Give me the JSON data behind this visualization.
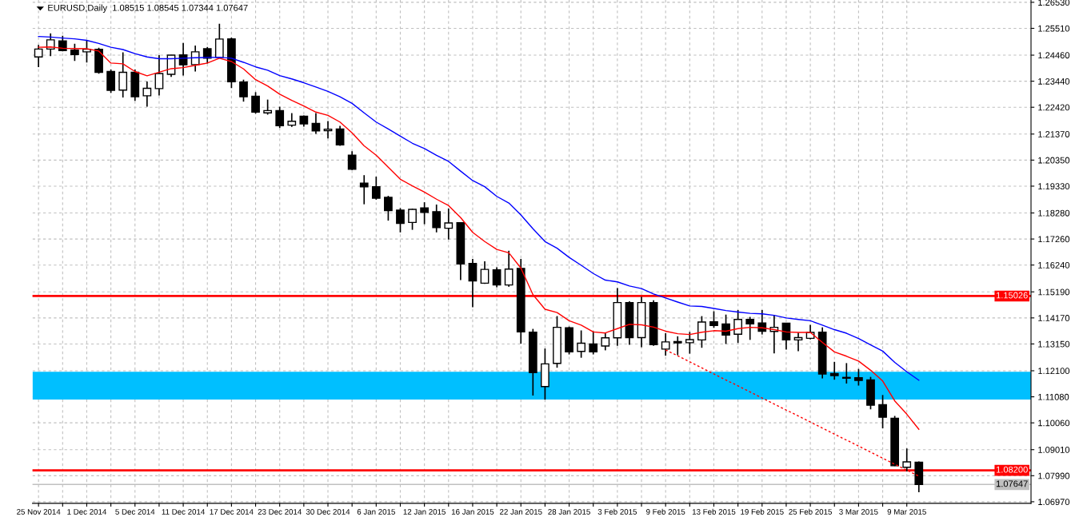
{
  "chart_data": {
    "type": "candlestick",
    "title": "EURUSD,Daily  1.08515 1.08545 1.07344 1.07647",
    "categories": [
      "25 Nov 2014",
      null,
      null,
      null,
      "1 Dec 2014",
      null,
      null,
      null,
      "5 Dec 2014",
      null,
      null,
      null,
      "11 Dec 2014",
      null,
      null,
      null,
      "17 Dec 2014",
      null,
      null,
      null,
      "23 Dec 2014",
      null,
      null,
      null,
      "30 Dec 2014",
      null,
      null,
      null,
      "6 Jan 2015",
      null,
      null,
      null,
      "12 Jan 2015",
      null,
      null,
      null,
      "16 Jan 2015",
      null,
      null,
      null,
      "22 Jan 2015",
      null,
      null,
      null,
      "28 Jan 2015",
      null,
      null,
      null,
      "3 Feb 2015",
      null,
      null,
      null,
      "9 Feb 2015",
      null,
      null,
      null,
      "13 Feb 2015",
      null,
      null,
      null,
      "19 Feb 2015",
      null,
      null,
      null,
      "25 Feb 2015",
      null,
      null,
      null,
      "3 Mar 2015",
      null,
      null,
      null,
      "9 Mar 2015",
      null
    ],
    "ohlc": [
      [
        1.2439,
        1.2486,
        1.2399,
        1.247
      ],
      [
        1.247,
        1.2531,
        1.2442,
        1.2506
      ],
      [
        1.2502,
        1.2522,
        1.2461,
        1.2464
      ],
      [
        1.2466,
        1.2491,
        1.2423,
        1.2448
      ],
      [
        1.2459,
        1.2504,
        1.2417,
        1.2469
      ],
      [
        1.2469,
        1.2475,
        1.2373,
        1.2379
      ],
      [
        1.2382,
        1.239,
        1.2298,
        1.2308
      ],
      [
        1.2309,
        1.2457,
        1.228,
        1.2379
      ],
      [
        1.2379,
        1.239,
        1.2267,
        1.2283
      ],
      [
        1.2287,
        1.2343,
        1.2244,
        1.2316
      ],
      [
        1.2315,
        1.2446,
        1.2288,
        1.2374
      ],
      [
        1.2371,
        1.2447,
        1.2361,
        1.2446
      ],
      [
        1.2447,
        1.2494,
        1.2366,
        1.2408
      ],
      [
        1.2409,
        1.2484,
        1.2382,
        1.2459
      ],
      [
        1.2471,
        1.2478,
        1.2413,
        1.2434
      ],
      [
        1.2437,
        1.2569,
        1.2435,
        1.2509
      ],
      [
        1.251,
        1.2515,
        1.2317,
        1.2342
      ],
      [
        1.2341,
        1.235,
        1.2264,
        1.2283
      ],
      [
        1.2285,
        1.2301,
        1.2217,
        1.2223
      ],
      [
        1.222,
        1.2272,
        1.2213,
        1.2229
      ],
      [
        1.2229,
        1.2244,
        1.2161,
        1.217
      ],
      [
        1.2172,
        1.2219,
        1.2165,
        1.2187
      ],
      [
        1.2207,
        1.221,
        1.2166,
        1.2177
      ],
      [
        1.2179,
        1.2219,
        1.2138,
        1.2149
      ],
      [
        1.215,
        1.2188,
        1.212,
        1.2156
      ],
      [
        1.2157,
        1.2169,
        1.2091,
        1.2095
      ],
      [
        1.2054,
        1.207,
        1.1996,
        1.1999
      ],
      [
        1.1945,
        1.1976,
        1.1862,
        1.193
      ],
      [
        1.1931,
        1.197,
        1.188,
        1.1886
      ],
      [
        1.1889,
        1.1895,
        1.1798,
        1.1837
      ],
      [
        1.1839,
        1.1847,
        1.1752,
        1.1787
      ],
      [
        1.1791,
        1.1845,
        1.1762,
        1.1842
      ],
      [
        1.1848,
        1.187,
        1.1784,
        1.183
      ],
      [
        1.1833,
        1.1861,
        1.1752,
        1.1771
      ],
      [
        1.1768,
        1.1845,
        1.1724,
        1.1789
      ],
      [
        1.179,
        1.1792,
        1.1565,
        1.1628
      ],
      [
        1.163,
        1.1648,
        1.1459,
        1.1562
      ],
      [
        1.1553,
        1.1639,
        1.155,
        1.1607
      ],
      [
        1.1605,
        1.1615,
        1.1537,
        1.1546
      ],
      [
        1.1546,
        1.168,
        1.1539,
        1.1608
      ],
      [
        1.1611,
        1.1648,
        1.1316,
        1.1362
      ],
      [
        1.1361,
        1.1374,
        1.1113,
        1.1203
      ],
      [
        1.1148,
        1.1297,
        1.1097,
        1.1237
      ],
      [
        1.1239,
        1.1424,
        1.1222,
        1.138
      ],
      [
        1.1378,
        1.1383,
        1.1274,
        1.1284
      ],
      [
        1.1286,
        1.1368,
        1.1261,
        1.1318
      ],
      [
        1.1315,
        1.1365,
        1.1274,
        1.1284
      ],
      [
        1.1307,
        1.136,
        1.129,
        1.1339
      ],
      [
        1.1339,
        1.1534,
        1.1308,
        1.1477
      ],
      [
        1.1477,
        1.1482,
        1.1312,
        1.134
      ],
      [
        1.134,
        1.15,
        1.1302,
        1.1477
      ],
      [
        1.1477,
        1.1486,
        1.1308,
        1.1312
      ],
      [
        1.1295,
        1.1357,
        1.1269,
        1.1323
      ],
      [
        1.1324,
        1.1345,
        1.1271,
        1.1319
      ],
      [
        1.132,
        1.1362,
        1.1277,
        1.1332
      ],
      [
        1.1331,
        1.1424,
        1.13,
        1.1401
      ],
      [
        1.1402,
        1.1443,
        1.1378,
        1.1387
      ],
      [
        1.1393,
        1.143,
        1.1315,
        1.135
      ],
      [
        1.1353,
        1.1448,
        1.1319,
        1.1411
      ],
      [
        1.1411,
        1.1421,
        1.1331,
        1.1394
      ],
      [
        1.1397,
        1.1448,
        1.1352,
        1.1365
      ],
      [
        1.1364,
        1.1429,
        1.1278,
        1.138
      ],
      [
        1.1396,
        1.1396,
        1.1293,
        1.1331
      ],
      [
        1.1331,
        1.1359,
        1.1287,
        1.134
      ],
      [
        1.1337,
        1.139,
        1.1333,
        1.136
      ],
      [
        1.1361,
        1.138,
        1.118,
        1.1197
      ],
      [
        1.1199,
        1.1245,
        1.1175,
        1.1191
      ],
      [
        1.1184,
        1.124,
        1.116,
        1.1181
      ],
      [
        1.1183,
        1.1217,
        1.1152,
        1.1172
      ],
      [
        1.1174,
        1.1186,
        1.1059,
        1.1075
      ],
      [
        1.1077,
        1.1115,
        1.0985,
        1.1028
      ],
      [
        1.1024,
        1.1033,
        1.0837,
        1.0838
      ],
      [
        1.0832,
        1.0906,
        1.0816,
        1.0853
      ],
      [
        1.08515,
        1.08545,
        1.07344,
        1.07647
      ]
    ],
    "series": [
      {
        "type": "line",
        "color": "#ff0000",
        "values": [
          1.2477,
          1.2478,
          1.2473,
          1.2472,
          1.2471,
          1.2462,
          1.2415,
          1.2412,
          1.2382,
          1.2365,
          1.2379,
          1.2393,
          1.2397,
          1.2406,
          1.2415,
          1.2434,
          1.2421,
          1.2392,
          1.235,
          1.2325,
          1.2293,
          1.2269,
          1.2247,
          1.2223,
          1.221,
          1.2184,
          1.2142,
          1.2091,
          1.2054,
          1.2007,
          1.196,
          1.1934,
          1.191,
          1.1882,
          1.1857,
          1.181,
          1.1752,
          1.1716,
          1.1685,
          1.1672,
          1.1612,
          1.1508,
          1.1451,
          1.1438,
          1.1406,
          1.1389,
          1.1362,
          1.1358,
          1.1375,
          1.1392,
          1.139,
          1.1381,
          1.1365,
          1.1355,
          1.1352,
          1.1361,
          1.1367,
          1.1365,
          1.1375,
          1.138,
          1.1378,
          1.1371,
          1.1362,
          1.136,
          1.136,
          1.1321,
          1.1284,
          1.1267,
          1.1248,
          1.1212,
          1.117,
          1.1092,
          1.104,
          1.0981
        ]
      },
      {
        "type": "line",
        "color": "#0000ff",
        "values": [
          1.2519,
          1.2517,
          1.2513,
          1.251,
          1.2504,
          1.2492,
          1.2477,
          1.2468,
          1.2452,
          1.2439,
          1.2432,
          1.2432,
          1.2434,
          1.2436,
          1.2437,
          1.2438,
          1.2434,
          1.2418,
          1.24,
          1.2387,
          1.2366,
          1.2353,
          1.2338,
          1.2321,
          1.2304,
          1.2283,
          1.2257,
          1.222,
          1.2184,
          1.2157,
          1.2129,
          1.2101,
          1.208,
          1.2054,
          1.203,
          1.1992,
          1.1955,
          1.1931,
          1.1893,
          1.1867,
          1.182,
          1.1766,
          1.1716,
          1.169,
          1.1654,
          1.1623,
          1.1591,
          1.1565,
          1.1558,
          1.1542,
          1.1532,
          1.1511,
          1.1495,
          1.1479,
          1.1464,
          1.1462,
          1.1454,
          1.1446,
          1.144,
          1.1435,
          1.1433,
          1.1427,
          1.1417,
          1.1411,
          1.1406,
          1.1389,
          1.1371,
          1.1357,
          1.1336,
          1.1311,
          1.1287,
          1.1243,
          1.1206,
          1.1173
        ]
      },
      {
        "type": "line",
        "color": "#ff0000",
        "line_style": "dashed",
        "values": [
          null,
          null,
          null,
          null,
          null,
          null,
          null,
          null,
          null,
          null,
          null,
          null,
          null,
          null,
          null,
          null,
          null,
          null,
          null,
          null,
          null,
          null,
          null,
          null,
          null,
          null,
          null,
          null,
          null,
          null,
          null,
          null,
          null,
          null,
          null,
          null,
          null,
          null,
          null,
          null,
          null,
          null,
          null,
          null,
          null,
          null,
          null,
          null,
          null,
          null,
          null,
          null,
          1.1292,
          null,
          null,
          null,
          null,
          null,
          null,
          null,
          null,
          null,
          null,
          null,
          null,
          null,
          null,
          null,
          null,
          null,
          null,
          null,
          null,
          1.0797
        ]
      }
    ],
    "ylim": [
      1.0691,
      1.2662
    ],
    "yticks": [
      {
        "value": 1.0697,
        "label": "1.06970"
      },
      {
        "value": 1.0799,
        "label": "1.07990"
      },
      {
        "value": 1.0901,
        "label": "1.09010"
      },
      {
        "value": 1.1006,
        "label": "1.10060"
      },
      {
        "value": 1.1108,
        "label": "1.11080"
      },
      {
        "value": 1.121,
        "label": "1.12100"
      },
      {
        "value": 1.1315,
        "label": "1.13150"
      },
      {
        "value": 1.1417,
        "label": "1.14170"
      },
      {
        "value": 1.1519,
        "label": "1.15190"
      },
      {
        "value": 1.1624,
        "label": "1.16240"
      },
      {
        "value": 1.1726,
        "label": "1.17260"
      },
      {
        "value": 1.1828,
        "label": "1.18280"
      },
      {
        "value": 1.1933,
        "label": "1.19330"
      },
      {
        "value": 1.2035,
        "label": "1.20350"
      },
      {
        "value": 1.2137,
        "label": "1.21370"
      },
      {
        "value": 1.2242,
        "label": "1.22420"
      },
      {
        "value": 1.2344,
        "label": "1.23440"
      },
      {
        "value": 1.2446,
        "label": "1.24460"
      },
      {
        "value": 1.2551,
        "label": "1.25510"
      },
      {
        "value": 1.2653,
        "label": "1.26530"
      }
    ],
    "ref_lines": [
      {
        "axis": "y",
        "value": 1.15026,
        "label": "1.15026",
        "color": "#ff0000"
      },
      {
        "axis": "y",
        "value": 1.082,
        "label": "1.08200",
        "color": "#ff0000"
      },
      {
        "axis": "y",
        "value": 1.07647,
        "label": "1.07647",
        "color": "#c0c0c0"
      }
    ],
    "bands": [
      {
        "axis": "y",
        "from": 1.1097,
        "to": 1.1206,
        "color": "#00bfff"
      }
    ],
    "grid": true
  }
}
